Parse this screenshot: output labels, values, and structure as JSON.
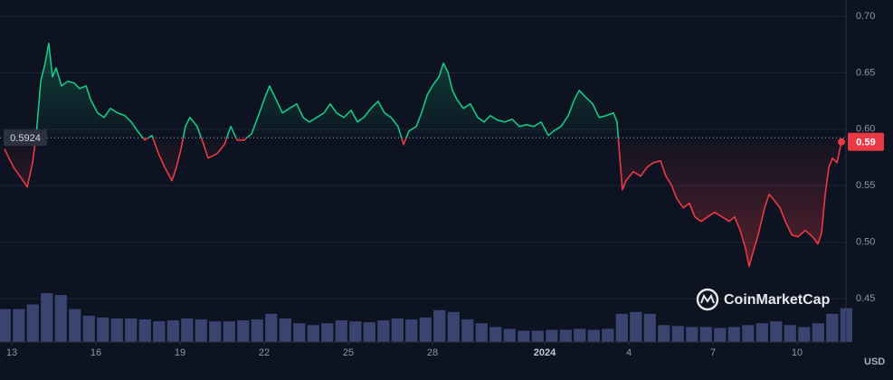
{
  "chart_data": {
    "type": "line",
    "x": [
      -0.26,
      0.06,
      0.29,
      0.55,
      0.74,
      0.87,
      1.03,
      1.19,
      1.32,
      1.45,
      1.58,
      1.77,
      2.0,
      2.23,
      2.42,
      2.65,
      2.81,
      3.06,
      3.29,
      3.52,
      3.77,
      4.03,
      4.26,
      4.48,
      4.74,
      5.0,
      5.23,
      5.45,
      5.71,
      5.87,
      6.03,
      6.19,
      6.35,
      6.61,
      6.84,
      7.0,
      7.32,
      7.58,
      7.81,
      8.03,
      8.29,
      8.55,
      8.77,
      9.0,
      9.19,
      9.42,
      9.65,
      9.9,
      10.16,
      10.39,
      10.61,
      10.87,
      11.13,
      11.35,
      11.58,
      11.84,
      12.1,
      12.32,
      12.55,
      12.81,
      13.06,
      13.29,
      13.52,
      13.77,
      13.97,
      14.16,
      14.42,
      14.61,
      14.81,
      15.0,
      15.23,
      15.39,
      15.55,
      15.71,
      15.87,
      16.1,
      16.35,
      16.61,
      16.84,
      17.06,
      17.32,
      17.58,
      17.84,
      18.1,
      18.35,
      18.61,
      18.87,
      19.13,
      19.32,
      19.58,
      19.84,
      20.06,
      20.23,
      20.48,
      20.71,
      20.94,
      21.19,
      21.45,
      21.58,
      21.68,
      21.77,
      21.9,
      22.16,
      22.42,
      22.65,
      22.87,
      23.13,
      23.32,
      23.52,
      23.71,
      23.94,
      24.16,
      24.35,
      24.58,
      24.81,
      25.06,
      25.32,
      25.58,
      25.77,
      25.97,
      26.16,
      26.29,
      26.42,
      26.61,
      26.84,
      27.0,
      27.19,
      27.39,
      27.58,
      27.81,
      28.03,
      28.29,
      28.55,
      28.74,
      28.87,
      29.0,
      29.13,
      29.26,
      29.42,
      29.58
    ],
    "values": [
      0.5824,
      0.5664,
      0.5584,
      0.5488,
      0.5704,
      0.5944,
      0.6424,
      0.6584,
      0.676,
      0.6464,
      0.6544,
      0.6384,
      0.6424,
      0.6408,
      0.636,
      0.6384,
      0.6264,
      0.6144,
      0.6104,
      0.6184,
      0.6144,
      0.612,
      0.6064,
      0.5984,
      0.5904,
      0.5944,
      0.5784,
      0.5664,
      0.5544,
      0.5664,
      0.5824,
      0.6024,
      0.6104,
      0.6024,
      0.5864,
      0.5744,
      0.5784,
      0.5864,
      0.6024,
      0.5904,
      0.5904,
      0.596,
      0.6104,
      0.6264,
      0.6384,
      0.6264,
      0.6144,
      0.6184,
      0.6224,
      0.6104,
      0.6064,
      0.6104,
      0.6144,
      0.6224,
      0.6144,
      0.6104,
      0.6168,
      0.6064,
      0.6104,
      0.6184,
      0.6248,
      0.6144,
      0.6104,
      0.6024,
      0.5864,
      0.5984,
      0.6024,
      0.6144,
      0.6304,
      0.6384,
      0.6464,
      0.6584,
      0.6504,
      0.6344,
      0.6264,
      0.6184,
      0.6224,
      0.6104,
      0.6064,
      0.612,
      0.608,
      0.6064,
      0.6088,
      0.6024,
      0.604,
      0.6024,
      0.6064,
      0.5944,
      0.5984,
      0.6024,
      0.612,
      0.6264,
      0.6344,
      0.628,
      0.6224,
      0.6104,
      0.612,
      0.6144,
      0.6064,
      0.5744,
      0.5464,
      0.5544,
      0.5624,
      0.5584,
      0.5664,
      0.5704,
      0.572,
      0.5584,
      0.5504,
      0.5384,
      0.5304,
      0.5344,
      0.5224,
      0.5184,
      0.5224,
      0.5264,
      0.5224,
      0.5184,
      0.5224,
      0.5104,
      0.4944,
      0.4784,
      0.4904,
      0.5064,
      0.5304,
      0.5424,
      0.5368,
      0.5304,
      0.5184,
      0.5064,
      0.5048,
      0.5104,
      0.5048,
      0.4984,
      0.508,
      0.5424,
      0.5664,
      0.5744,
      0.5704,
      0.5888
    ],
    "colors": {
      "up": "#16c784",
      "down": "#ea3943"
    },
    "baseline": 0.5924,
    "last_value_label": "0.59",
    "volume": {
      "x": [
        -0.25,
        0.25,
        0.75,
        1.25,
        1.75,
        2.25,
        2.75,
        3.25,
        3.75,
        4.25,
        4.75,
        5.25,
        5.75,
        6.25,
        6.75,
        7.25,
        7.75,
        8.25,
        8.75,
        9.25,
        9.75,
        10.25,
        10.75,
        11.25,
        11.75,
        12.25,
        12.75,
        13.25,
        13.75,
        14.25,
        14.75,
        15.25,
        15.75,
        16.25,
        16.75,
        17.25,
        17.75,
        18.25,
        18.75,
        19.25,
        19.75,
        20.25,
        20.75,
        21.25,
        21.75,
        22.25,
        22.75,
        23.25,
        23.75,
        24.25,
        24.75,
        25.25,
        25.75,
        26.25,
        26.75,
        27.25,
        27.75,
        28.25,
        28.75,
        29.25,
        29.75
      ],
      "values": [
        35,
        35,
        40,
        52,
        50,
        35,
        28,
        26,
        25,
        25,
        24,
        22,
        23,
        25,
        24,
        22,
        22,
        23,
        24,
        30,
        25,
        20,
        18,
        20,
        23,
        22,
        21,
        23,
        25,
        24,
        26,
        34,
        32,
        24,
        20,
        16,
        14,
        12,
        12,
        13,
        13,
        14,
        13,
        14,
        30,
        32,
        30,
        18,
        17,
        16,
        16,
        15,
        16,
        18,
        20,
        22,
        18,
        16,
        20,
        30,
        36
      ],
      "color": "#3b4470"
    },
    "xlim": [
      -0.42,
      29.74
    ],
    "xticks": [
      {
        "value": 0,
        "label": "13"
      },
      {
        "value": 3,
        "label": "16"
      },
      {
        "value": 6,
        "label": "19"
      },
      {
        "value": 9,
        "label": "22"
      },
      {
        "value": 12,
        "label": "25"
      },
      {
        "value": 15,
        "label": "28"
      },
      {
        "value": 19,
        "label": "2024"
      },
      {
        "value": 22,
        "label": "4"
      },
      {
        "value": 25,
        "label": "7"
      },
      {
        "value": 28,
        "label": "10"
      }
    ],
    "ylim": [
      0.4116,
      0.7144
    ],
    "yticks": [
      {
        "value": 0.7,
        "label": "0.70"
      },
      0.65,
      {
        "value": 0.6,
        "label": "0.60"
      },
      0.55,
      {
        "value": 0.5,
        "label": "0.50"
      },
      0.45
    ],
    "grid": true,
    "currency": "USD",
    "watermark": "CoinMarketCap"
  }
}
